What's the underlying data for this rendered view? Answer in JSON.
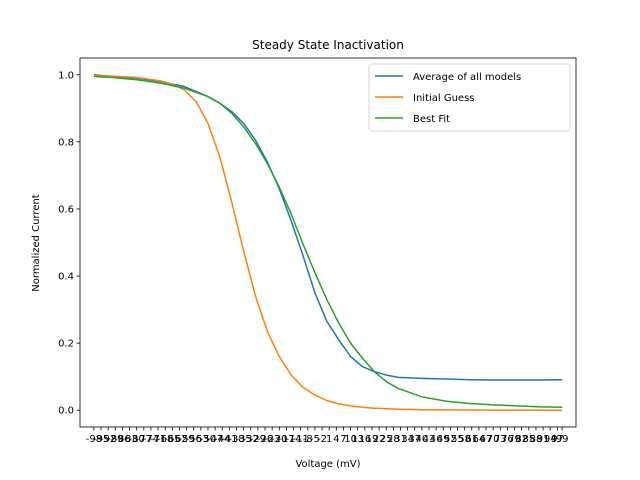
{
  "chart_data": {
    "type": "line",
    "title": "Steady State Inactivation",
    "xlabel": "Voltage (mV)",
    "ylabel": "Normalized Current",
    "ylim": [
      -0.05,
      1.05
    ],
    "y_ticks": [
      "0.0",
      "0.2",
      "0.4",
      "0.6",
      "0.8",
      "1.0"
    ],
    "x_tick_labels": [
      "-98",
      "-95",
      "-92",
      "-89",
      "-86",
      "-83",
      "-80",
      "-77",
      "-74",
      "-71",
      "-68",
      "-65",
      "-62",
      "-59",
      "-56",
      "-53",
      "-50",
      "-47",
      "-44",
      "-41",
      "-38",
      "-35",
      "-32",
      "-29",
      "-26",
      "-23",
      "-20",
      "-17",
      "-14",
      "-11",
      "-8",
      "-5",
      "-2",
      "1",
      "4",
      "7",
      "10",
      "13",
      "16",
      "19",
      "22",
      "25",
      "28",
      "31",
      "34",
      "37",
      "40",
      "43",
      "46",
      "49",
      "52",
      "55",
      "58",
      "61",
      "64",
      "67",
      "70",
      "73",
      "76",
      "79",
      "82",
      "85",
      "88",
      "91",
      "94",
      "97",
      "99"
    ],
    "x_tick_labels_note": "",
    "legend_position": "upper-right",
    "series": [
      {
        "name": "Average of all models",
        "color": "#1f77b4",
        "x": [
          -98,
          -90,
          -80,
          -70,
          -60,
          -50,
          -45,
          -40,
          -35,
          -30,
          -25,
          -20,
          -15,
          -10,
          -5,
          0,
          5,
          10,
          15,
          20,
          25,
          30,
          40,
          50,
          60,
          70,
          80,
          90,
          99
        ],
        "y": [
          1.0,
          0.995,
          0.99,
          0.98,
          0.965,
          0.935,
          0.915,
          0.89,
          0.855,
          0.805,
          0.74,
          0.66,
          0.565,
          0.46,
          0.35,
          0.265,
          0.21,
          0.16,
          0.13,
          0.115,
          0.105,
          0.098,
          0.095,
          0.093,
          0.091,
          0.09,
          0.09,
          0.09,
          0.091
        ]
      },
      {
        "name": "Initial Guess",
        "color": "#ff7f0e",
        "x": [
          -98,
          -90,
          -80,
          -70,
          -65,
          -60,
          -55,
          -50,
          -45,
          -40,
          -35,
          -30,
          -25,
          -20,
          -15,
          -10,
          -5,
          0,
          5,
          10,
          15,
          20,
          30,
          40,
          50,
          60,
          70,
          80,
          90,
          99
        ],
        "y": [
          0.998,
          0.996,
          0.992,
          0.982,
          0.972,
          0.955,
          0.92,
          0.855,
          0.755,
          0.62,
          0.475,
          0.34,
          0.235,
          0.16,
          0.105,
          0.068,
          0.045,
          0.029,
          0.019,
          0.013,
          0.009,
          0.006,
          0.003,
          0.0015,
          0.001,
          0.0006,
          0.0004,
          0.0003,
          0.0002,
          0.0001
        ]
      },
      {
        "name": "Best Fit",
        "color": "#2ca02c",
        "x": [
          -98,
          -90,
          -80,
          -70,
          -60,
          -50,
          -45,
          -40,
          -35,
          -30,
          -25,
          -20,
          -15,
          -10,
          -5,
          0,
          5,
          10,
          15,
          20,
          25,
          30,
          40,
          50,
          60,
          70,
          80,
          90,
          99
        ],
        "y": [
          0.995,
          0.992,
          0.985,
          0.975,
          0.96,
          0.935,
          0.915,
          0.885,
          0.845,
          0.795,
          0.735,
          0.665,
          0.585,
          0.495,
          0.41,
          0.33,
          0.26,
          0.2,
          0.155,
          0.115,
          0.085,
          0.065,
          0.04,
          0.027,
          0.02,
          0.016,
          0.013,
          0.01,
          0.009
        ]
      }
    ]
  }
}
